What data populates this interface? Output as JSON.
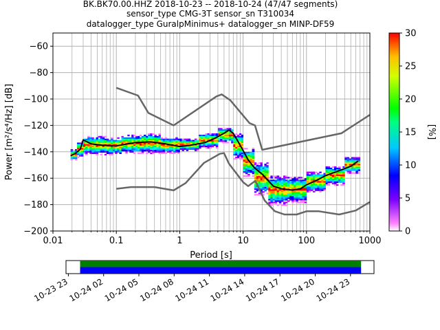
{
  "chart_data": {
    "type": "heatmap",
    "title_lines": [
      "BK.BK70.00.HHZ   2018-10-23 -- 2018-10-24  (47/47 segments)",
      "sensor_type CMG-3T sensor_sn T310034",
      "datalogger_type GuralpMinimus+ datalogger_sn MINP-DF59"
    ],
    "xlabel": "Period [s]",
    "ylabel": "Power [m²/s⁴/Hz] [dB]",
    "x_scale": "log",
    "xlim": [
      0.01,
      1000
    ],
    "ylim": [
      -200,
      -50
    ],
    "grid": true,
    "x_ticks": [
      {
        "v": 0.01,
        "label": "0.01"
      },
      {
        "v": 0.1,
        "label": "0.1"
      },
      {
        "v": 1,
        "label": "1"
      },
      {
        "v": 10,
        "label": "10"
      },
      {
        "v": 100,
        "label": "100"
      },
      {
        "v": 1000,
        "label": "1000"
      }
    ],
    "y_ticks": [
      {
        "v": -60,
        "label": "−60"
      },
      {
        "v": -80,
        "label": "−80"
      },
      {
        "v": -100,
        "label": "−100"
      },
      {
        "v": -120,
        "label": "−120"
      },
      {
        "v": -140,
        "label": "−140"
      },
      {
        "v": -160,
        "label": "−160"
      },
      {
        "v": -180,
        "label": "−180"
      },
      {
        "v": -200,
        "label": "−200"
      }
    ],
    "colorbar": {
      "label": "[%]",
      "range": [
        0,
        30
      ],
      "ticks": [
        {
          "v": 0,
          "label": "0"
        },
        {
          "v": 5,
          "label": "5"
        },
        {
          "v": 10,
          "label": "10"
        },
        {
          "v": 15,
          "label": "15"
        },
        {
          "v": 20,
          "label": "20"
        },
        {
          "v": 25,
          "label": "25"
        },
        {
          "v": 30,
          "label": "30"
        }
      ]
    },
    "series": [
      {
        "role": "model-high",
        "color": "#666666",
        "points": [
          [
            0.1,
            -91.5
          ],
          [
            0.22,
            -97.4
          ],
          [
            0.32,
            -110.5
          ],
          [
            0.8,
            -120
          ],
          [
            3.8,
            -98
          ],
          [
            4.6,
            -96.5
          ],
          [
            6.3,
            -101
          ],
          [
            12.6,
            -118.3
          ],
          [
            15.4,
            -120
          ],
          [
            20,
            -138.5
          ],
          [
            354.8,
            -126
          ],
          [
            1000,
            -112
          ]
        ]
      },
      {
        "role": "model-low",
        "color": "#666666",
        "points": [
          [
            0.1,
            -168
          ],
          [
            0.17,
            -166.7
          ],
          [
            0.4,
            -166.7
          ],
          [
            0.8,
            -169.2
          ],
          [
            1.24,
            -163.7
          ],
          [
            2.4,
            -148.5
          ],
          [
            4.3,
            -141.5
          ],
          [
            5,
            -141
          ],
          [
            6,
            -149
          ],
          [
            10,
            -163
          ],
          [
            12,
            -166
          ],
          [
            15.6,
            -162
          ],
          [
            21.9,
            -177
          ],
          [
            31.6,
            -185
          ],
          [
            45,
            -187.5
          ],
          [
            70,
            -187.5
          ],
          [
            101,
            -185
          ],
          [
            154,
            -185
          ],
          [
            328,
            -187.5
          ],
          [
            600,
            -184.5
          ],
          [
            1000,
            -178
          ]
        ]
      },
      {
        "role": "mode",
        "color": "#000000",
        "points": [
          [
            0.019,
            -143
          ],
          [
            0.022,
            -141.5
          ],
          [
            0.025,
            -139.5
          ],
          [
            0.027,
            -138
          ],
          [
            0.03,
            -131
          ],
          [
            0.04,
            -134
          ],
          [
            0.06,
            -135
          ],
          [
            0.1,
            -135.5
          ],
          [
            0.2,
            -133
          ],
          [
            0.35,
            -132.5
          ],
          [
            0.6,
            -134
          ],
          [
            1,
            -136
          ],
          [
            1.5,
            -135
          ],
          [
            2.5,
            -133
          ],
          [
            3.5,
            -130
          ],
          [
            5,
            -126
          ],
          [
            6,
            -123.5
          ],
          [
            7,
            -126
          ],
          [
            8.5,
            -133
          ],
          [
            10,
            -139
          ],
          [
            12,
            -146
          ],
          [
            15,
            -152
          ],
          [
            20,
            -157
          ],
          [
            25,
            -162
          ],
          [
            30,
            -166
          ],
          [
            40,
            -168
          ],
          [
            60,
            -169
          ],
          [
            80,
            -168
          ],
          [
            100,
            -165
          ],
          [
            140,
            -162
          ],
          [
            200,
            -158
          ],
          [
            300,
            -155
          ],
          [
            500,
            -151
          ],
          [
            650,
            -147
          ]
        ]
      }
    ],
    "density": [
      {
        "x": [
          0.019,
          0.024
        ],
        "ylo": -146,
        "yhi": -138
      },
      {
        "x": [
          0.024,
          0.03
        ],
        "ylo": -144,
        "yhi": -132
      },
      {
        "x": [
          0.03,
          0.07
        ],
        "ylo": -142,
        "yhi": -128
      },
      {
        "x": [
          0.07,
          0.12
        ],
        "ylo": -142,
        "yhi": -129
      },
      {
        "x": [
          0.12,
          0.25
        ],
        "ylo": -141,
        "yhi": -127
      },
      {
        "x": [
          0.25,
          0.5
        ],
        "ylo": -141,
        "yhi": -126
      },
      {
        "x": [
          0.5,
          1.0
        ],
        "ylo": -141,
        "yhi": -129
      },
      {
        "x": [
          1.0,
          2.0
        ],
        "ylo": -139,
        "yhi": -130
      },
      {
        "x": [
          2.0,
          4.0
        ],
        "ylo": -137,
        "yhi": -126
      },
      {
        "x": [
          4.0,
          7.0
        ],
        "ylo": -133,
        "yhi": -122
      },
      {
        "x": [
          7.0,
          10.0
        ],
        "ylo": -145,
        "yhi": -126
      },
      {
        "x": [
          10.0,
          15.0
        ],
        "ylo": -158,
        "yhi": -137
      },
      {
        "x": [
          15.0,
          25.0
        ],
        "ylo": -172,
        "yhi": -148
      },
      {
        "x": [
          25.0,
          50.0
        ],
        "ylo": -180,
        "yhi": -158
      },
      {
        "x": [
          50.0,
          100.0
        ],
        "ylo": -178,
        "yhi": -159
      },
      {
        "x": [
          100.0,
          200.0
        ],
        "ylo": -170,
        "yhi": -155
      },
      {
        "x": [
          200.0,
          400.0
        ],
        "ylo": -165,
        "yhi": -151
      },
      {
        "x": [
          400.0,
          700.0
        ],
        "ylo": -156,
        "yhi": -144
      }
    ]
  },
  "timeline": {
    "tick_labels": [
      "10-23 23",
      "10-24 02",
      "10-24 05",
      "10-24 08",
      "10-24 11",
      "10-24 14",
      "10-24 17",
      "10-24 20",
      "10-24 23"
    ],
    "tick_hours": [
      23,
      26,
      29,
      32,
      35,
      38,
      41,
      44,
      47
    ],
    "axis_start_hour": 22.8,
    "axis_end_hour": 49.0,
    "coverage": [
      {
        "start_hour": 24.0,
        "end_hour": 47.9
      }
    ],
    "bar_colors": [
      "#008000",
      "#0000ff"
    ]
  }
}
